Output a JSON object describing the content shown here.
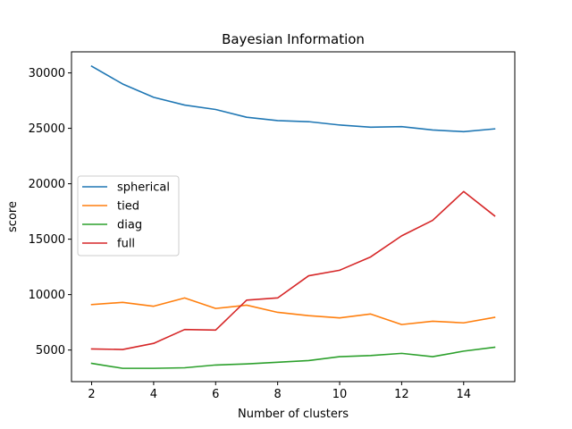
{
  "chart_data": {
    "type": "line",
    "title": "Bayesian Information",
    "xlabel": "Number of clusters",
    "ylabel": "score",
    "x": [
      2,
      3,
      4,
      5,
      6,
      7,
      8,
      9,
      10,
      11,
      12,
      13,
      14,
      15
    ],
    "xlim": [
      1.35,
      15.65
    ],
    "ylim": [
      2150,
      31900
    ],
    "xticks": [
      2,
      4,
      6,
      8,
      10,
      12,
      14
    ],
    "yticks": [
      5000,
      10000,
      15000,
      20000,
      25000,
      30000
    ],
    "grid": false,
    "legend_position": "center-left",
    "series": [
      {
        "name": "spherical",
        "color": "#1f77b4",
        "values": [
          30600,
          29000,
          27800,
          27100,
          26700,
          26000,
          25700,
          25600,
          25300,
          25100,
          25150,
          24850,
          24700,
          24950
        ]
      },
      {
        "name": "tied",
        "color": "#ff7f0e",
        "values": [
          9100,
          9300,
          8950,
          9700,
          8750,
          9050,
          8400,
          8100,
          7900,
          8250,
          7300,
          7600,
          7450,
          7950
        ]
      },
      {
        "name": "diag",
        "color": "#2ca02c",
        "values": [
          3800,
          3350,
          3350,
          3400,
          3650,
          3750,
          3900,
          4050,
          4400,
          4500,
          4700,
          4400,
          4900,
          5250
        ]
      },
      {
        "name": "full",
        "color": "#d62728",
        "values": [
          5100,
          5050,
          5600,
          6850,
          6800,
          9500,
          9700,
          11700,
          12200,
          13400,
          15300,
          16700,
          19300,
          17100
        ]
      }
    ]
  }
}
